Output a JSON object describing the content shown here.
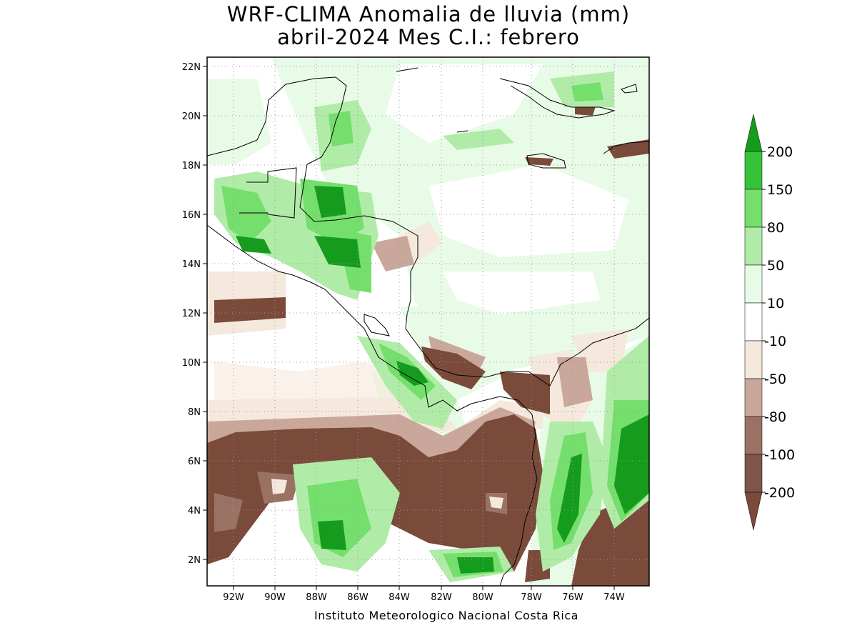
{
  "title": {
    "line1": "WRF-CLIMA Anomalia de lluvia (mm)",
    "line2": "abril-2024 Mes C.I.: febrero"
  },
  "credit": "Instituto Meteorologico Nacional Costa Rica",
  "axes": {
    "lon_ticks": [
      "92W",
      "90W",
      "88W",
      "86W",
      "84W",
      "82W",
      "80W",
      "78W",
      "76W",
      "74W"
    ],
    "lat_ticks": [
      "2N",
      "4N",
      "6N",
      "8N",
      "10N",
      "12N",
      "14N",
      "16N",
      "18N",
      "20N",
      "22N"
    ],
    "lon_range": [
      -93.2,
      -72.5
    ],
    "lat_range": [
      0.9,
      22.4
    ],
    "grid": true
  },
  "colorbar": {
    "labels": [
      "200",
      "150",
      "80",
      "50",
      "10",
      "-10",
      "-50",
      "-80",
      "-100",
      "-200"
    ],
    "colors": [
      "#7a4a3a",
      "#7e5549",
      "#9a7264",
      "#c9a79a",
      "#f5e8dc",
      "#ffffff",
      "#e8fbe6",
      "#b0eca8",
      "#74df6c",
      "#36c33a",
      "#159c1d"
    ],
    "colors_order": "low-to-high"
  },
  "anomaly_regions": {
    "strong_dry": [
      "Pacific 2N-7N",
      "Colombian Pacific coast",
      "Gulf of Panama",
      "north Panama coast",
      "east Colombia"
    ],
    "strong_wet": [
      "Guatemala-Honduras highlands",
      "western Colombia Andes",
      "Caribbean Costa Rica",
      "Pacific near 2N 80W"
    ],
    "near_normal": [
      "Caribbean Sea",
      "Gulf of Mexico",
      "Pacific near 10N"
    ]
  }
}
